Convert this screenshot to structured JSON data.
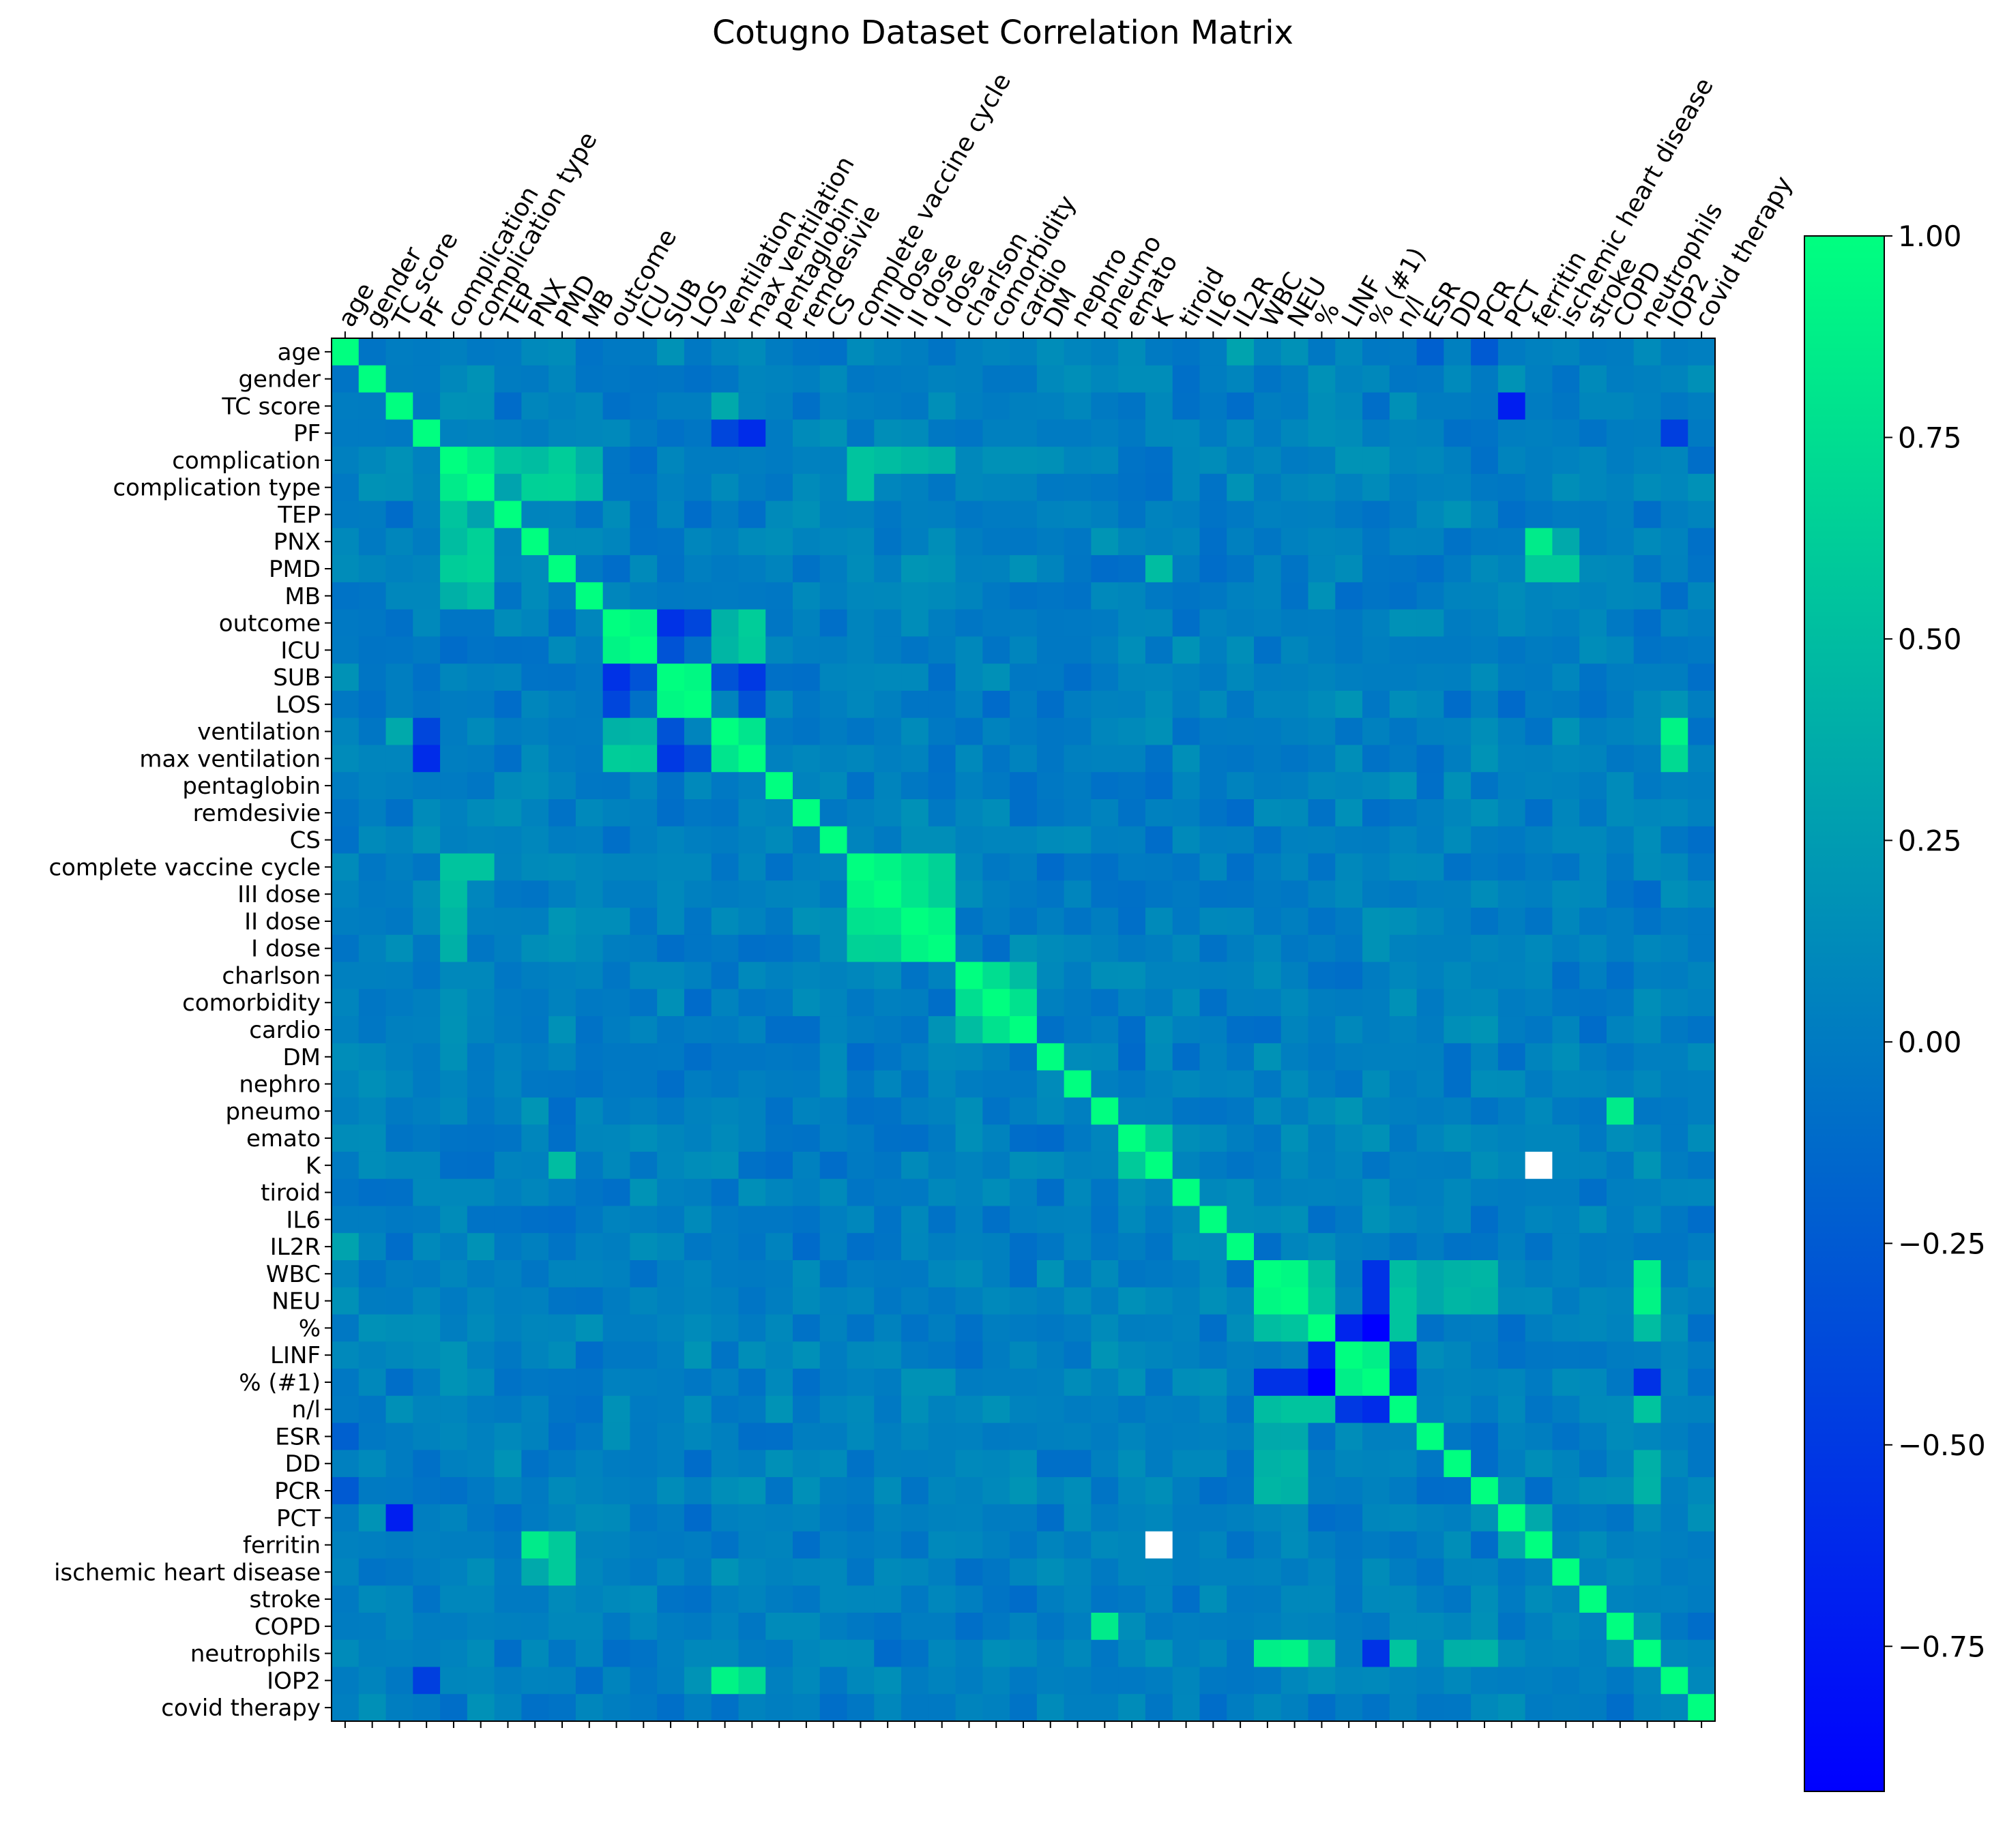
{
  "chart_data": {
    "type": "heatmap",
    "title": "Cotugno Dataset Correlation Matrix",
    "colormap": "winter",
    "colormap_colors": {
      "min": "#0000ff",
      "max": "#00ff80",
      "missing": "#ffffff"
    },
    "labels": [
      "age",
      "gender",
      "TC score",
      "PF",
      "complication",
      "complication type",
      "TEP",
      "PNX",
      "PMD",
      "MB",
      "outcome",
      "ICU",
      "SUB",
      "LOS",
      "ventilation",
      "max ventilation",
      "pentaglobin",
      "remdesivie",
      "CS",
      "complete vaccine cycle",
      "III dose",
      "II dose",
      "I dose",
      "charlson",
      "comorbidity",
      "cardio",
      "DM",
      "nephro",
      "pneumo",
      "emato",
      "K",
      "tiroid",
      "IL6",
      "IL2R",
      "WBC",
      "NEU",
      "%",
      "LINF",
      "% (#1)",
      "n/l",
      "ESR",
      "DD",
      "PCR",
      "PCT",
      "ferritin",
      "ischemic heart disease",
      "stroke",
      "COPD",
      "neutrophils",
      "IOP2",
      "covid therapy"
    ],
    "value_range": [
      -0.93,
      1.0
    ],
    "colorbar": {
      "ticks": [
        1.0,
        0.75,
        0.5,
        0.25,
        0.0,
        -0.25,
        -0.5,
        -0.75
      ],
      "tick_labels": [
        "1.00",
        "0.75",
        "0.50",
        "0.25",
        "0.00",
        "−0.25",
        "−0.50",
        "−0.75"
      ]
    },
    "diagonal": 1.0,
    "missing_cells": [
      [
        "K",
        "ferritin"
      ],
      [
        "ferritin",
        "K"
      ]
    ],
    "baseline": 0.03,
    "correlations": [
      [
        "complication",
        "complication type",
        0.85
      ],
      [
        "complication",
        "TEP",
        0.55
      ],
      [
        "complication",
        "PNX",
        0.5
      ],
      [
        "complication",
        "PMD",
        0.62
      ],
      [
        "complication",
        "MB",
        0.4
      ],
      [
        "complication type",
        "PNX",
        0.65
      ],
      [
        "complication type",
        "PMD",
        0.66
      ],
      [
        "complication type",
        "MB",
        0.5
      ],
      [
        "complication type",
        "TEP",
        0.3
      ],
      [
        "outcome",
        "ICU",
        0.92
      ],
      [
        "outcome",
        "SUB",
        -0.55
      ],
      [
        "outcome",
        "LOS",
        -0.4
      ],
      [
        "outcome",
        "ventilation",
        0.42
      ],
      [
        "outcome",
        "max ventilation",
        0.62
      ],
      [
        "ICU",
        "SUB",
        -0.3
      ],
      [
        "ICU",
        "max ventilation",
        0.6
      ],
      [
        "ICU",
        "ventilation",
        0.45
      ],
      [
        "SUB",
        "LOS",
        0.95
      ],
      [
        "SUB",
        "ventilation",
        -0.3
      ],
      [
        "SUB",
        "max ventilation",
        -0.5
      ],
      [
        "LOS",
        "max ventilation",
        -0.3
      ],
      [
        "ventilation",
        "max ventilation",
        0.8
      ],
      [
        "ventilation",
        "IOP2",
        0.92
      ],
      [
        "max ventilation",
        "IOP2",
        0.72
      ],
      [
        "TC score",
        "ventilation",
        0.35
      ],
      [
        "PF",
        "ventilation",
        -0.4
      ],
      [
        "PF",
        "max ventilation",
        -0.6
      ],
      [
        "PF",
        "IOP2",
        -0.45
      ],
      [
        "complete vaccine cycle",
        "III dose",
        0.92
      ],
      [
        "complete vaccine cycle",
        "II dose",
        0.78
      ],
      [
        "complete vaccine cycle",
        "I dose",
        0.66
      ],
      [
        "III dose",
        "II dose",
        0.8
      ],
      [
        "III dose",
        "I dose",
        0.65
      ],
      [
        "II dose",
        "I dose",
        0.92
      ],
      [
        "complication",
        "complete vaccine cycle",
        0.55
      ],
      [
        "complication type",
        "complete vaccine cycle",
        0.55
      ],
      [
        "complication",
        "III dose",
        0.5
      ],
      [
        "complication",
        "II dose",
        0.45
      ],
      [
        "complication",
        "I dose",
        0.4
      ],
      [
        "charlson",
        "comorbidity",
        0.75
      ],
      [
        "charlson",
        "cardio",
        0.5
      ],
      [
        "comorbidity",
        "cardio",
        0.78
      ],
      [
        "pneumo",
        "COPD",
        0.85
      ],
      [
        "emato",
        "K",
        0.6
      ],
      [
        "WBC",
        "NEU",
        0.95
      ],
      [
        "WBC",
        "neutrophils",
        0.88
      ],
      [
        "NEU",
        "neutrophils",
        0.92
      ],
      [
        "WBC",
        "%",
        0.5
      ],
      [
        "NEU",
        "%",
        0.55
      ],
      [
        "%",
        "neutrophils",
        0.5
      ],
      [
        "WBC",
        "n/l",
        0.5
      ],
      [
        "NEU",
        "n/l",
        0.55
      ],
      [
        "%",
        "n/l",
        0.55
      ],
      [
        "n/l",
        "neutrophils",
        0.55
      ],
      [
        "LINF",
        "% (#1)",
        0.88
      ],
      [
        "%",
        "% (#1)",
        -0.93
      ],
      [
        "%",
        "LINF",
        -0.65
      ],
      [
        "WBC",
        "% (#1)",
        -0.55
      ],
      [
        "NEU",
        "% (#1)",
        -0.55
      ],
      [
        "% (#1)",
        "neutrophils",
        -0.55
      ],
      [
        "LINF",
        "n/l",
        -0.5
      ],
      [
        "% (#1)",
        "n/l",
        -0.6
      ],
      [
        "PNX",
        "ferritin",
        0.85
      ],
      [
        "PMD",
        "ferritin",
        0.6
      ],
      [
        "PMD",
        "K",
        0.5
      ],
      [
        "PMD",
        "ischemic heart disease",
        0.6
      ],
      [
        "PNX",
        "ischemic heart disease",
        0.35
      ],
      [
        "TC score",
        "PCT",
        -0.7
      ],
      [
        "age",
        "PCR",
        -0.25
      ],
      [
        "age",
        "ESR",
        -0.2
      ],
      [
        "age",
        "IL2R",
        0.3
      ],
      [
        "DD",
        "WBC",
        0.42
      ],
      [
        "DD",
        "NEU",
        0.45
      ],
      [
        "DD",
        "neutrophils",
        0.4
      ],
      [
        "PCR",
        "WBC",
        0.45
      ],
      [
        "PCR",
        "NEU",
        0.42
      ],
      [
        "PCR",
        "neutrophils",
        0.42
      ],
      [
        "ESR",
        "WBC",
        0.35
      ],
      [
        "ESR",
        "NEU",
        0.35
      ],
      [
        "PCT",
        "ferritin",
        0.35
      ]
    ]
  }
}
